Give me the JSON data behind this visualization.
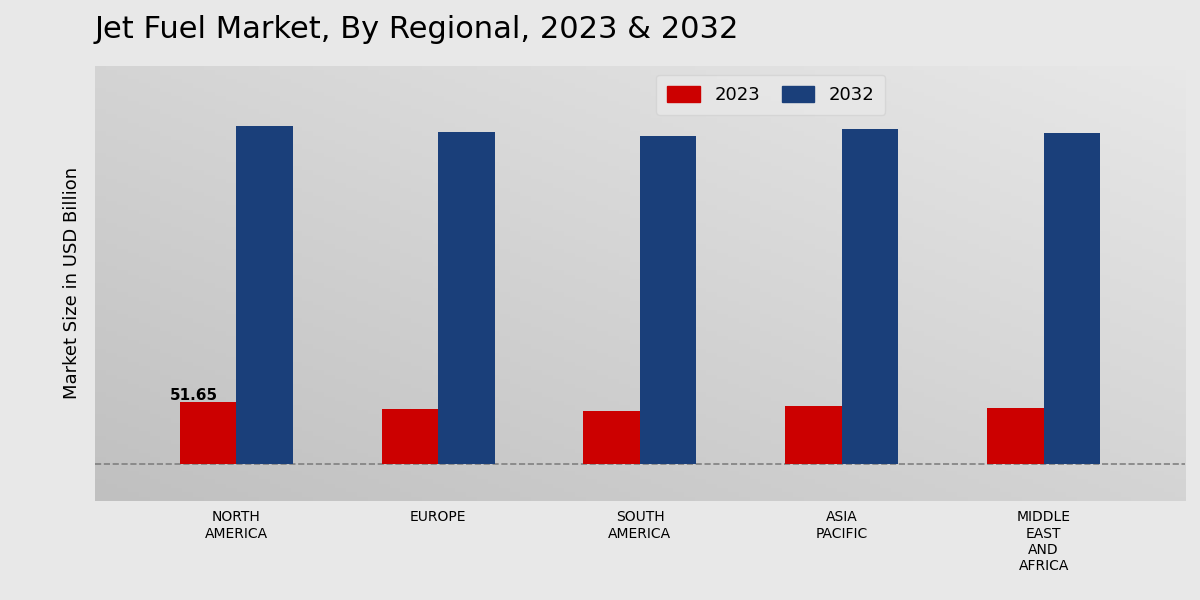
{
  "title": "Jet Fuel Market, By Regional, 2023 & 2032",
  "ylabel": "Market Size in USD Billion",
  "categories": [
    "NORTH\nAMERICA",
    "EUROPE",
    "SOUTH\nAMERICA",
    "ASIA\nPACIFIC",
    "MIDDLE\nEAST\nAND\nAFRICA"
  ],
  "values_2023": [
    51.65,
    46.0,
    44.0,
    48.0,
    47.0
  ],
  "values_2032": [
    280.0,
    275.0,
    272.0,
    278.0,
    274.0
  ],
  "color_2023": "#cc0000",
  "color_2032": "#1a3f7a",
  "annotation_label": "51.65",
  "bar_width": 0.28,
  "title_fontsize": 22,
  "ylabel_fontsize": 13,
  "tick_fontsize": 10,
  "legend_fontsize": 13,
  "bg_light": "#e8e8e8",
  "bg_dark": "#c0c0c0",
  "ylim_min": -30,
  "ylim_max": 330
}
